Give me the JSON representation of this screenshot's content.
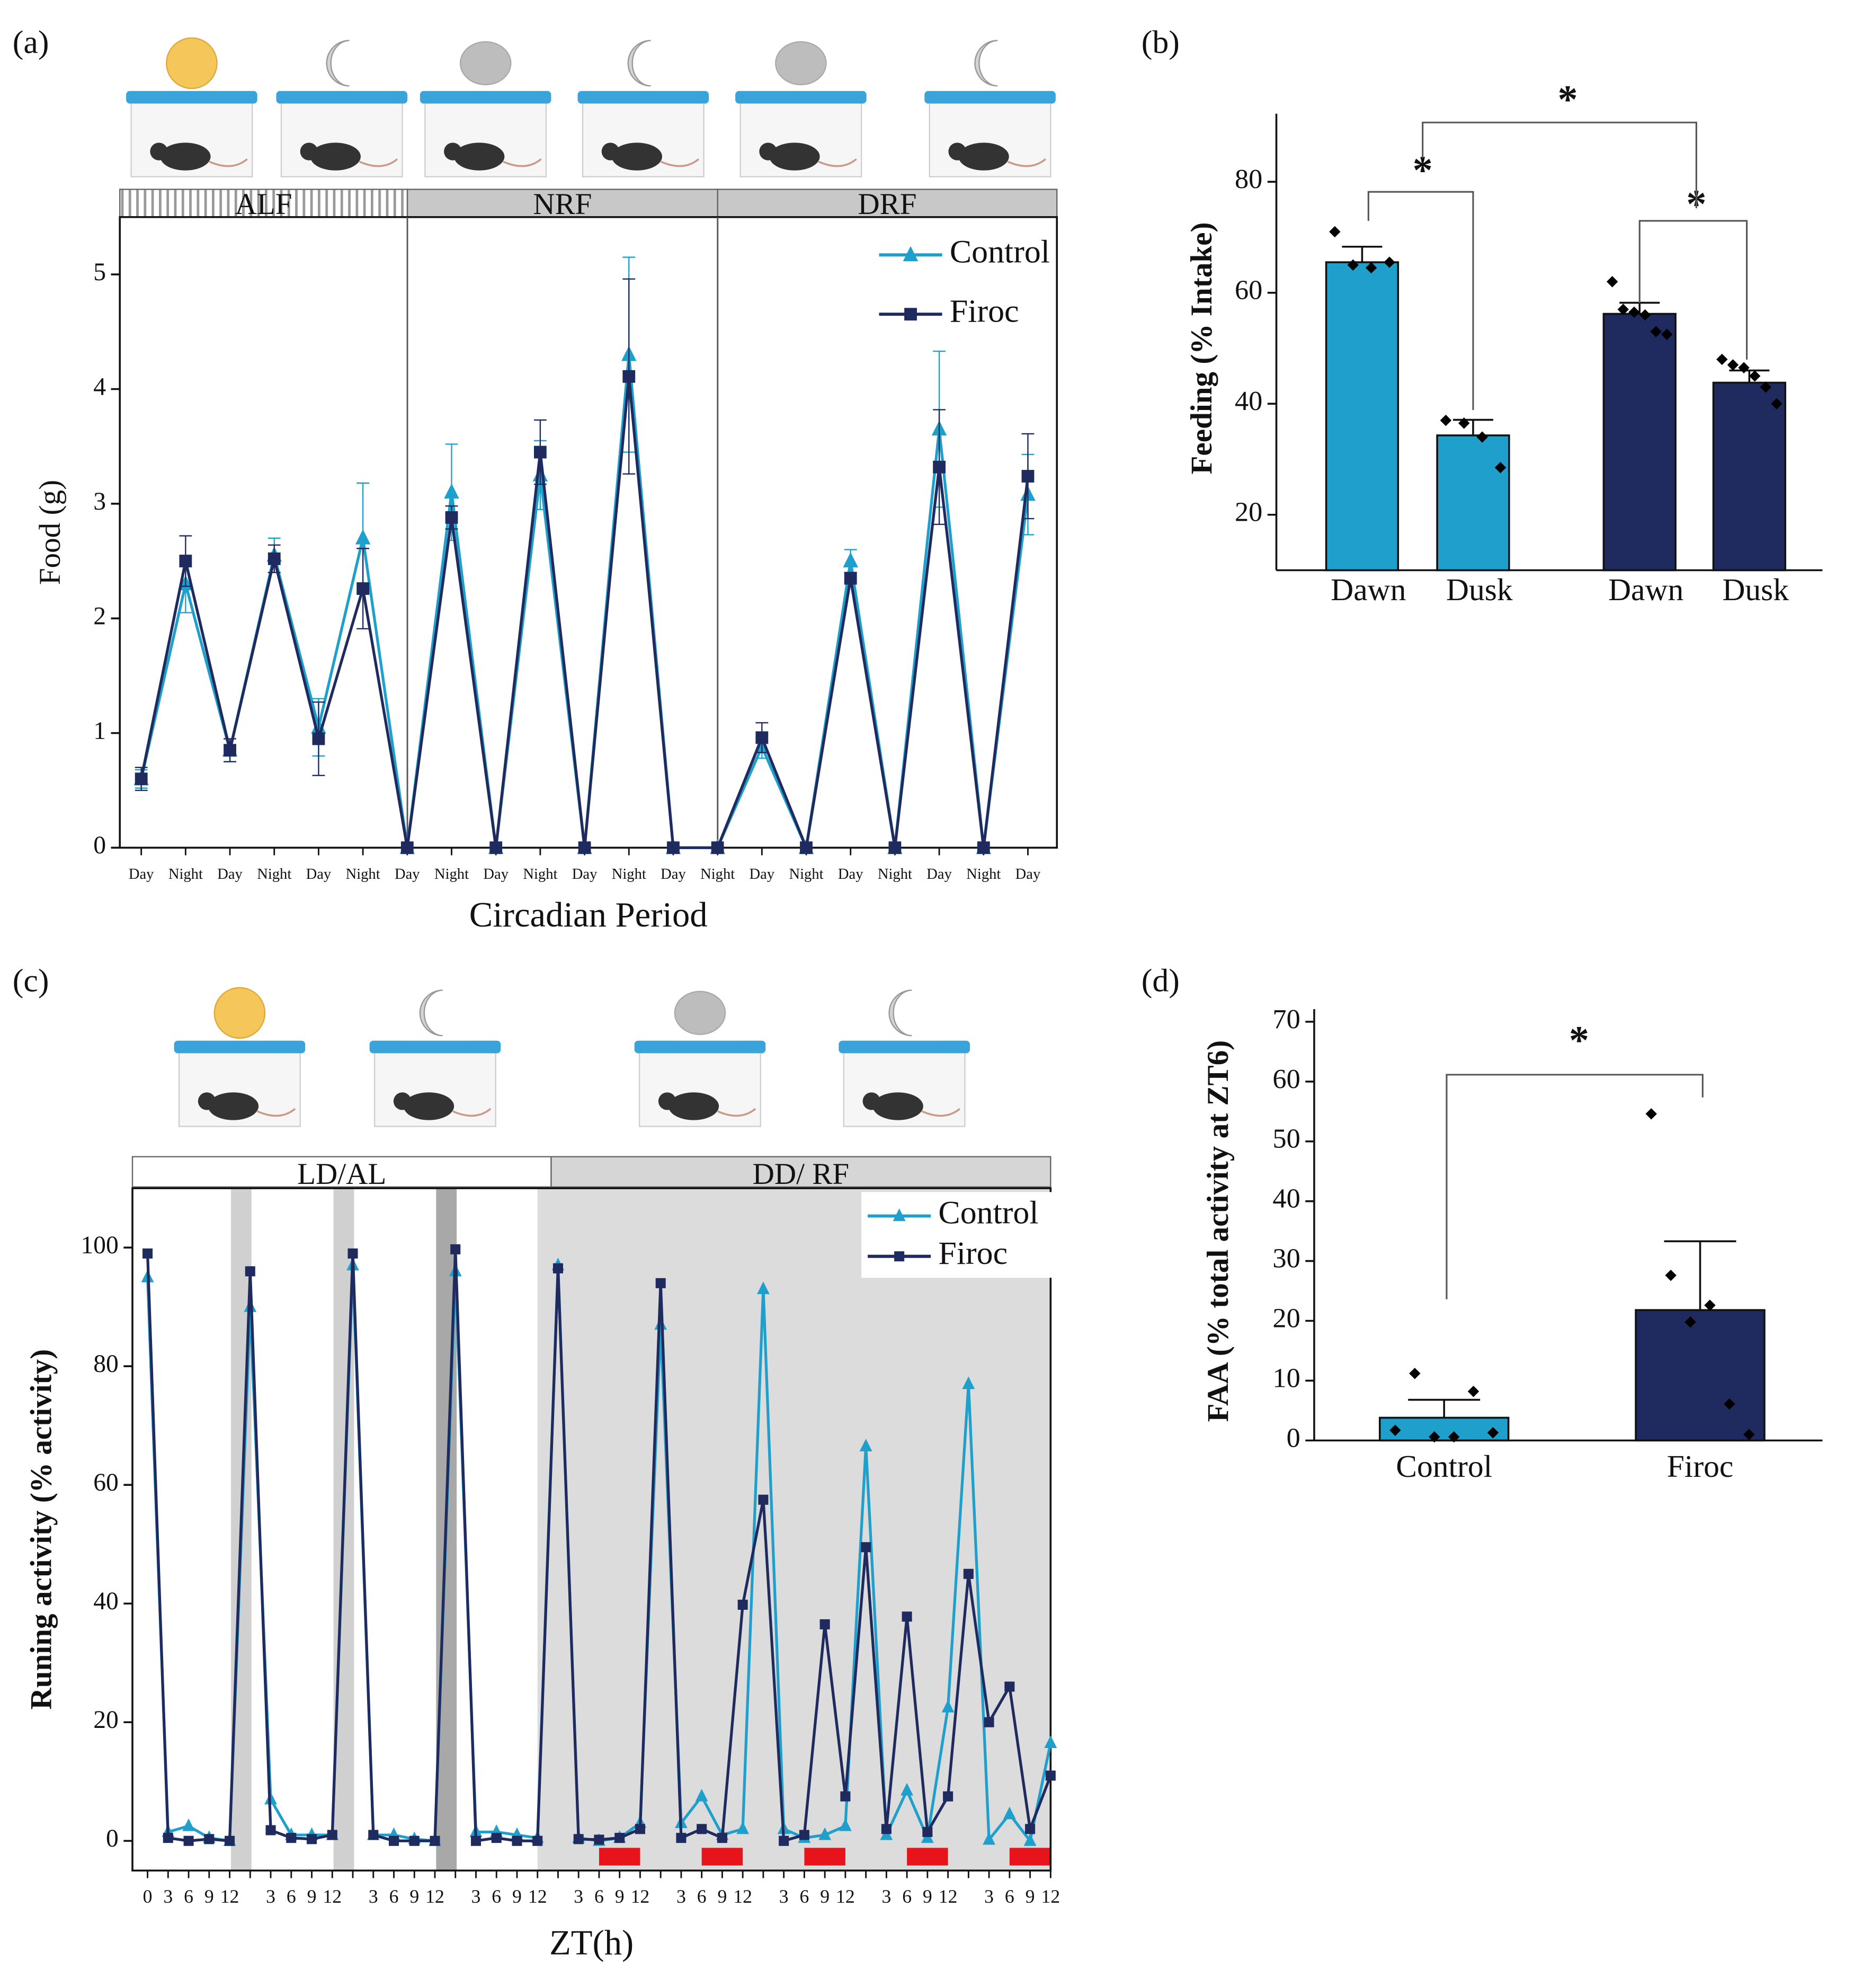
{
  "chart_data": [
    {
      "type": "line",
      "panel_label": "(a)",
      "sections": [
        "ALF",
        "NRF",
        "DRF"
      ],
      "categories": [
        "Day",
        "Night",
        "Day",
        "Night",
        "Day",
        "Night",
        "Day",
        "Night",
        "Day",
        "Night",
        "Day",
        "Night",
        "Day",
        "Night",
        "Day",
        "Night",
        "Day",
        "Night",
        "Day",
        "Night",
        "Day"
      ],
      "series": [
        {
          "name": "Control",
          "color": "#1fa0cc",
          "marker": "triangle",
          "values": [
            0.6,
            2.3,
            0.85,
            2.55,
            1.05,
            2.7,
            0,
            3.1,
            0,
            3.25,
            0,
            4.3,
            0,
            0,
            0.88,
            0,
            2.5,
            0,
            3.65,
            0,
            3.08
          ],
          "errors": [
            0.08,
            0.25,
            0.1,
            0.15,
            0.25,
            0.48,
            0,
            0.42,
            0,
            0.3,
            0,
            0.85,
            0,
            0,
            0.1,
            0,
            0.1,
            0,
            0.68,
            0,
            0.35
          ]
        },
        {
          "name": "Firoc",
          "color": "#1f2a5e",
          "marker": "square",
          "values": [
            0.6,
            2.5,
            0.85,
            2.52,
            0.95,
            2.26,
            0,
            2.88,
            0,
            3.45,
            0,
            4.11,
            0,
            0,
            0.96,
            0,
            2.35,
            0,
            3.32,
            0,
            3.24
          ],
          "errors": [
            0.1,
            0.22,
            0.1,
            0.12,
            0.32,
            0.35,
            0,
            0.1,
            0,
            0.28,
            0,
            0.85,
            0,
            0,
            0.13,
            0,
            0.05,
            0,
            0.5,
            0,
            0.37
          ]
        }
      ],
      "ylim": [
        0,
        5.5
      ],
      "yticks": [
        0,
        1,
        2,
        3,
        4,
        5
      ],
      "y_label": "Food (g)",
      "x_label": "Circadian Period",
      "legend": "upper right"
    },
    {
      "type": "bar",
      "panel_label": "(b)",
      "categories": [
        "Dawn",
        "Dusk",
        "Dawn",
        "Dusk"
      ],
      "values": [
        65.5,
        34.3,
        56.2,
        43.8
      ],
      "errors": [
        2.8,
        2.8,
        2,
        2.2
      ],
      "colors": [
        "#1fa0cc",
        "#1fa0cc",
        "#1f2a5e",
        "#1f2a5e"
      ],
      "points": [
        [
          71,
          65,
          64.5,
          65.5
        ],
        [
          37,
          36.5,
          34,
          28.5
        ],
        [
          62,
          57,
          56.5,
          56,
          53,
          52.5
        ],
        [
          48,
          47,
          46.5,
          45,
          43,
          40
        ]
      ],
      "ylim": [
        10,
        90
      ],
      "yticks": [
        20,
        40,
        60,
        80
      ],
      "y_label": "Feeding (% Intake)",
      "annotations": [
        "*",
        "*",
        "*"
      ]
    },
    {
      "type": "line",
      "panel_label": "(c)",
      "sections": [
        "LD/AL",
        "DD/ RF"
      ],
      "categories": [
        "0",
        "3",
        "6",
        "9",
        "12",
        null,
        "3",
        "6",
        "9",
        "12",
        null,
        "3",
        "6",
        "9",
        "12",
        null,
        "3",
        "6",
        "9",
        "12",
        null,
        "3",
        "6",
        "9",
        "12",
        null,
        "3",
        "6",
        "9",
        "12",
        null,
        "3",
        "6",
        "9",
        "12",
        null,
        "3",
        "6",
        "9",
        "12",
        null,
        "3",
        "6",
        "9",
        "12"
      ],
      "series": [
        {
          "name": "Control",
          "color": "#1fa0cc",
          "marker": "triangle",
          "values": [
            95,
            1.5,
            2.5,
            0.5,
            0,
            90,
            7,
            1,
            1,
            1,
            97,
            1,
            1,
            0.3,
            0,
            96,
            1.5,
            1.5,
            1,
            0.5,
            97,
            0.5,
            0,
            0.5,
            3,
            87,
            3,
            7.5,
            1,
            2,
            93,
            2,
            0.5,
            1,
            2.5,
            66.5,
            1,
            8.5,
            0.5,
            22.5,
            77,
            0.2,
            4.5,
            0,
            16.5
          ]
        },
        {
          "name": "Firoc",
          "color": "#1f2a5e",
          "marker": "square",
          "values": [
            99,
            0.5,
            0,
            0.3,
            0,
            96,
            1.8,
            0.5,
            0.3,
            1,
            99,
            1,
            0,
            0,
            0,
            99.7,
            0,
            0.5,
            0,
            0,
            96.5,
            0.3,
            0.2,
            0.5,
            2,
            94,
            0.5,
            2,
            0.5,
            39.8,
            57.5,
            0,
            1,
            36.5,
            7.5,
            49.5,
            2,
            37.8,
            1.5,
            7.5,
            45,
            20,
            26,
            2,
            11
          ]
        }
      ],
      "ylim": [
        -5,
        110
      ],
      "yticks": [
        0,
        20,
        40,
        60,
        80,
        100
      ],
      "y_label": "Runing activity (% activity)",
      "x_label": "ZT(h)",
      "legend": "upper right"
    },
    {
      "type": "bar",
      "panel_label": "(d)",
      "categories": [
        "Control",
        "Firoc"
      ],
      "values": [
        3.8,
        21.8
      ],
      "errors": [
        3,
        11.5
      ],
      "colors": [
        "#1fa0cc",
        "#1f2a5e"
      ],
      "points": [
        [
          1.7,
          11.2,
          0.6,
          0.6,
          8.2,
          1.3
        ],
        [
          54.6,
          27.6,
          19.8,
          22.6,
          6.1,
          1
        ]
      ],
      "ylim": [
        0,
        70
      ],
      "yticks": [
        0,
        10,
        20,
        30,
        40,
        50,
        60,
        70
      ],
      "y_label": "FAA (% total activity at ZT6)",
      "annotations": [
        "*"
      ]
    }
  ]
}
